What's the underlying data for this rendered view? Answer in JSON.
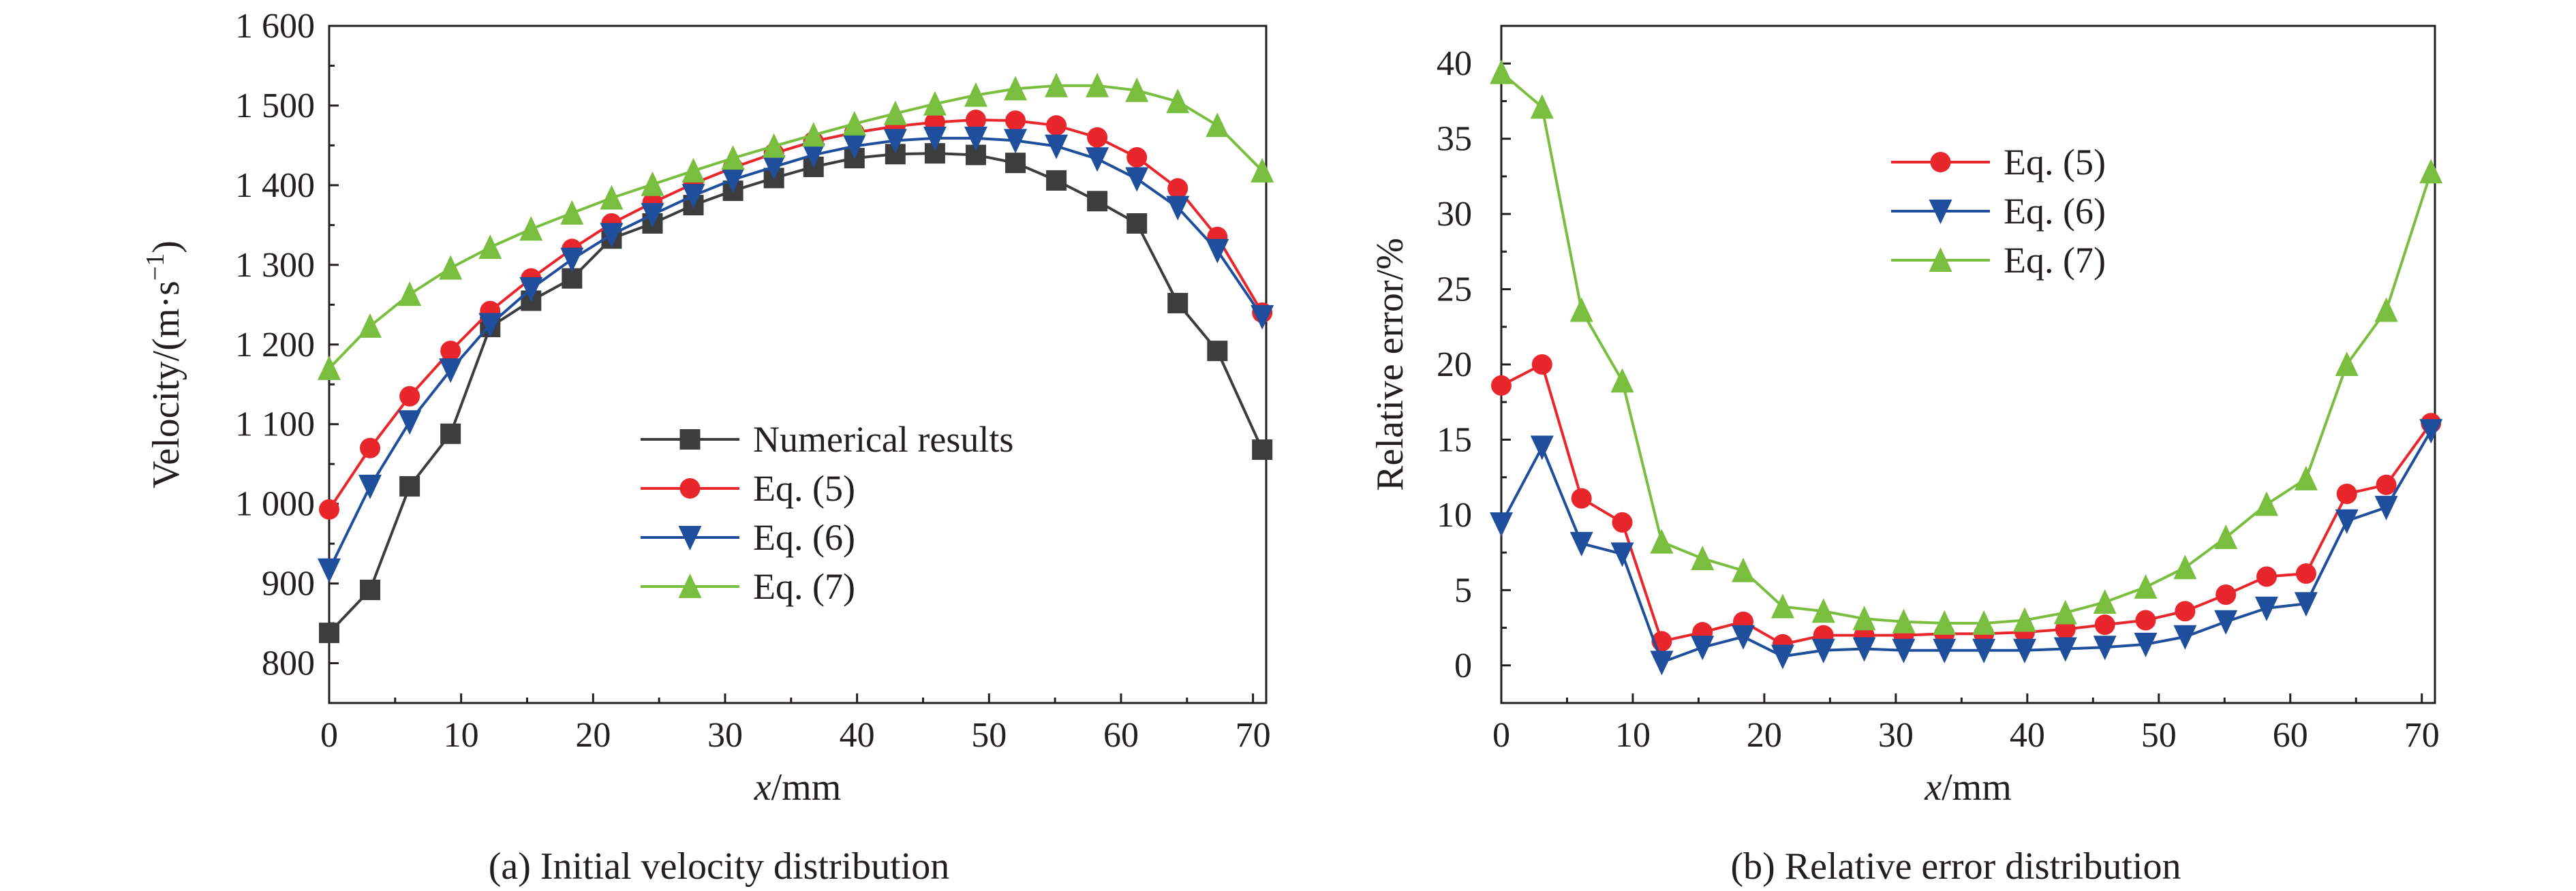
{
  "chart_data": [
    {
      "type": "line",
      "caption": "(a) Initial velocity distribution",
      "xlabel_var": "x",
      "xlabel_unit": "/mm",
      "ylabel": "Velocity/(m·s",
      "ylabel_sup": "−1",
      "ylabel_close": ")",
      "xlim": [
        0,
        71
      ],
      "ylim": [
        750,
        1600
      ],
      "xticks": [
        0,
        10,
        20,
        30,
        40,
        50,
        60,
        70
      ],
      "yticks": [
        800,
        900,
        1000,
        1100,
        1200,
        1300,
        1400,
        1500,
        1600
      ],
      "ytick_labels": [
        "800",
        "900",
        "1 000",
        "1 100",
        "1 200",
        "1 300",
        "1 400",
        "1 500",
        "1 600"
      ],
      "legend_position": "center",
      "x": [
        0,
        3.1,
        6.1,
        9.2,
        12.2,
        15.3,
        18.4,
        21.4,
        24.5,
        27.6,
        30.6,
        33.7,
        36.7,
        39.8,
        42.9,
        45.9,
        49,
        52,
        55.1,
        58.2,
        61.2,
        64.3,
        67.3,
        70.7
      ],
      "series": [
        {
          "name": "Numerical results",
          "marker": "square",
          "color": "#3d3d3d",
          "values": [
            838,
            892,
            1022,
            1088,
            1222,
            1255,
            1283,
            1333,
            1352,
            1375,
            1393,
            1409,
            1423,
            1434,
            1439,
            1440,
            1438,
            1428,
            1406,
            1380,
            1352,
            1252,
            1192,
            1068
          ]
        },
        {
          "name": "Eq. (5)",
          "marker": "circle",
          "color": "#e8262b",
          "values": [
            993,
            1070,
            1135,
            1192,
            1242,
            1283,
            1320,
            1352,
            1378,
            1402,
            1422,
            1440,
            1455,
            1466,
            1474,
            1479,
            1482,
            1481,
            1475,
            1460,
            1435,
            1396,
            1335,
            1240
          ]
        },
        {
          "name": "Eq. (6)",
          "marker": "triangle-down",
          "color": "#1f4e9c",
          "values": [
            917,
            1022,
            1103,
            1168,
            1225,
            1270,
            1307,
            1338,
            1363,
            1387,
            1407,
            1423,
            1438,
            1449,
            1456,
            1459,
            1459,
            1456,
            1449,
            1433,
            1408,
            1372,
            1318,
            1235
          ]
        },
        {
          "name": "Eq. (7)",
          "marker": "triangle-up",
          "color": "#79be3f",
          "values": [
            1170,
            1223,
            1263,
            1296,
            1322,
            1345,
            1365,
            1384,
            1401,
            1418,
            1434,
            1449,
            1463,
            1477,
            1490,
            1502,
            1513,
            1521,
            1525,
            1525,
            1519,
            1505,
            1475,
            1418
          ]
        }
      ]
    },
    {
      "type": "line",
      "caption": "(b) Relative error distribution",
      "xlabel_var": "x",
      "xlabel_unit": "/mm",
      "ylabel": "Relative error/%",
      "xlim": [
        0,
        71
      ],
      "ylim": [
        -2.5,
        42.5
      ],
      "xticks": [
        0,
        10,
        20,
        30,
        40,
        50,
        60,
        70
      ],
      "yticks": [
        0,
        5,
        10,
        15,
        20,
        25,
        30,
        35,
        40
      ],
      "ytick_labels": [
        "0",
        "5",
        "10",
        "15",
        "20",
        "25",
        "30",
        "35",
        "40"
      ],
      "legend_position": "top-center",
      "x": [
        0,
        3.1,
        6.1,
        9.2,
        12.2,
        15.3,
        18.4,
        21.4,
        24.5,
        27.6,
        30.6,
        33.7,
        36.7,
        39.8,
        42.9,
        45.9,
        49,
        52,
        55.1,
        58.2,
        61.2,
        64.3,
        67.3,
        70.7
      ],
      "series": [
        {
          "name": "Eq. (5)",
          "marker": "circle",
          "color": "#e8262b",
          "values": [
            18.6,
            20.0,
            11.1,
            9.5,
            1.6,
            2.2,
            2.9,
            1.4,
            2.0,
            2.0,
            2.0,
            2.1,
            2.1,
            2.2,
            2.4,
            2.7,
            3.0,
            3.6,
            4.7,
            5.9,
            6.1,
            11.4,
            12.0,
            16.1
          ]
        },
        {
          "name": "Eq. (6)",
          "marker": "triangle-down",
          "color": "#1f4e9c",
          "values": [
            9.4,
            14.5,
            8.1,
            7.4,
            0.2,
            1.2,
            1.9,
            0.6,
            1.0,
            1.1,
            1.0,
            1.0,
            1.0,
            1.0,
            1.1,
            1.2,
            1.4,
            1.9,
            2.9,
            3.8,
            4.1,
            9.6,
            10.5,
            15.6
          ]
        },
        {
          "name": "Eq. (7)",
          "marker": "triangle-up",
          "color": "#79be3f",
          "values": [
            39.4,
            37.1,
            23.6,
            18.9,
            8.2,
            7.1,
            6.3,
            3.9,
            3.6,
            3.1,
            2.9,
            2.8,
            2.8,
            3.0,
            3.5,
            4.2,
            5.2,
            6.5,
            8.5,
            10.7,
            12.4,
            20.0,
            23.6,
            32.8
          ]
        }
      ]
    }
  ]
}
